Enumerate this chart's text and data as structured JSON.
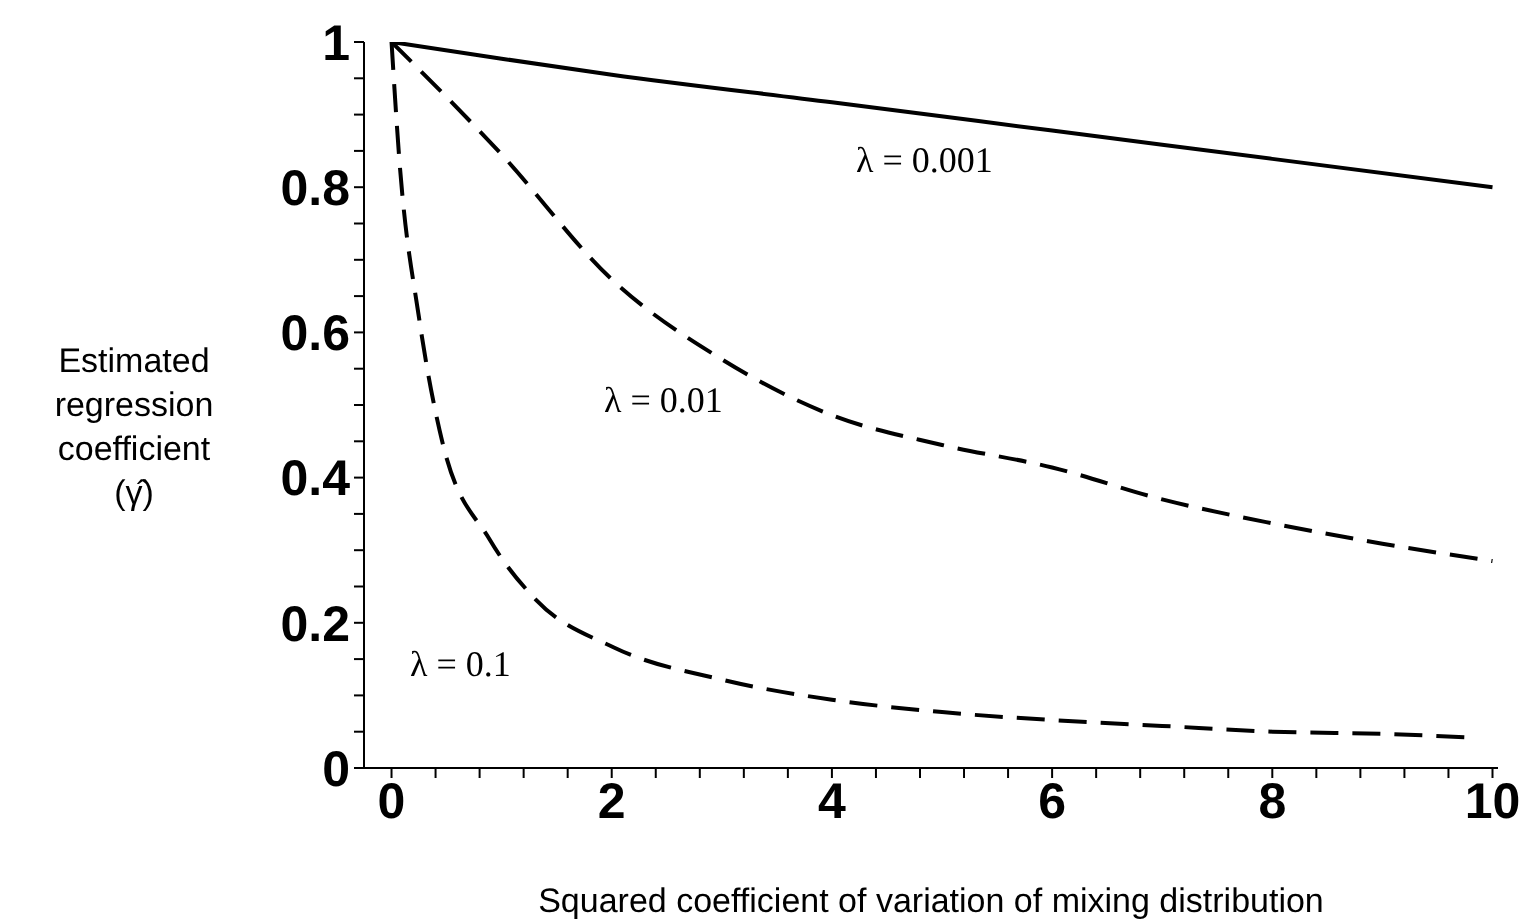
{
  "chart_data": {
    "type": "line",
    "xlabel": "Squared coefficient of variation of mixing distribution",
    "ylabel": "Estimated\nregression\ncoefficient\n(γ̂)",
    "xlim": [
      -0.25,
      10.05
    ],
    "ylim": [
      0,
      1
    ],
    "xticks": [
      0,
      {
        "value": 0.4,
        "label": null
      },
      {
        "value": 0.8,
        "label": null
      },
      {
        "value": 1.2,
        "label": null
      },
      {
        "value": 1.6,
        "label": null
      },
      2,
      {
        "value": 2.4,
        "label": null
      },
      {
        "value": 2.8,
        "label": null
      },
      {
        "value": 3.2,
        "label": null
      },
      {
        "value": 3.6,
        "label": null
      },
      4,
      {
        "value": 4.4,
        "label": null
      },
      {
        "value": 4.8,
        "label": null
      },
      {
        "value": 5.2,
        "label": null
      },
      {
        "value": 5.6,
        "label": null
      },
      6,
      {
        "value": 6.4,
        "label": null
      },
      {
        "value": 6.8,
        "label": null
      },
      {
        "value": 7.2,
        "label": null
      },
      {
        "value": 7.6,
        "label": null
      },
      8,
      {
        "value": 8.4,
        "label": null
      },
      {
        "value": 8.8,
        "label": null
      },
      {
        "value": 9.2,
        "label": null
      },
      {
        "value": 9.6,
        "label": null
      },
      10
    ],
    "yticks": [
      0,
      {
        "value": 0.05,
        "label": null
      },
      {
        "value": 0.1,
        "label": null
      },
      {
        "value": 0.15,
        "label": null
      },
      0.2,
      {
        "value": 0.25,
        "label": null
      },
      {
        "value": 0.3,
        "label": null
      },
      {
        "value": 0.35,
        "label": null
      },
      0.4,
      {
        "value": 0.45,
        "label": null
      },
      {
        "value": 0.5,
        "label": null
      },
      {
        "value": 0.55,
        "label": null
      },
      0.6,
      {
        "value": 0.65,
        "label": null
      },
      {
        "value": 0.7,
        "label": null
      },
      {
        "value": 0.75,
        "label": null
      },
      0.8,
      {
        "value": 0.85,
        "label": null
      },
      {
        "value": 0.9,
        "label": null
      },
      {
        "value": 0.95,
        "label": null
      },
      1
    ],
    "grid": false,
    "legend": false,
    "marker": "none",
    "series": [
      {
        "color": "#000000",
        "line_style": "solid",
        "x": [
          0,
          1,
          2,
          4,
          6,
          8,
          10
        ],
        "values": [
          1,
          0.977,
          0.955,
          0.917,
          0.878,
          0.839,
          0.8
        ]
      },
      {
        "color": "#000000",
        "line_style": "dashed",
        "x": [
          0,
          1,
          2,
          3,
          4,
          5,
          6,
          7,
          8,
          9,
          10
        ],
        "values": [
          1,
          0.845,
          0.673,
          0.563,
          0.486,
          0.445,
          0.414,
          0.37,
          0.337,
          0.309,
          0.285
        ]
      },
      {
        "color": "#000000",
        "line_style": "dashed",
        "x": [
          0,
          0.07,
          0.25,
          0.46,
          0.89,
          1.31,
          2.02,
          3.02,
          4,
          5,
          6,
          7,
          8,
          9,
          9.8
        ],
        "values": [
          1,
          0.84,
          0.62,
          0.45,
          0.315,
          0.232,
          0.166,
          0.121,
          0.094,
          0.077,
          0.066,
          0.058,
          0.05,
          0.047,
          0.042
        ]
      }
    ],
    "annotations": [
      "λ = 0.001",
      "λ = 0.01",
      "λ = 0.1"
    ]
  }
}
